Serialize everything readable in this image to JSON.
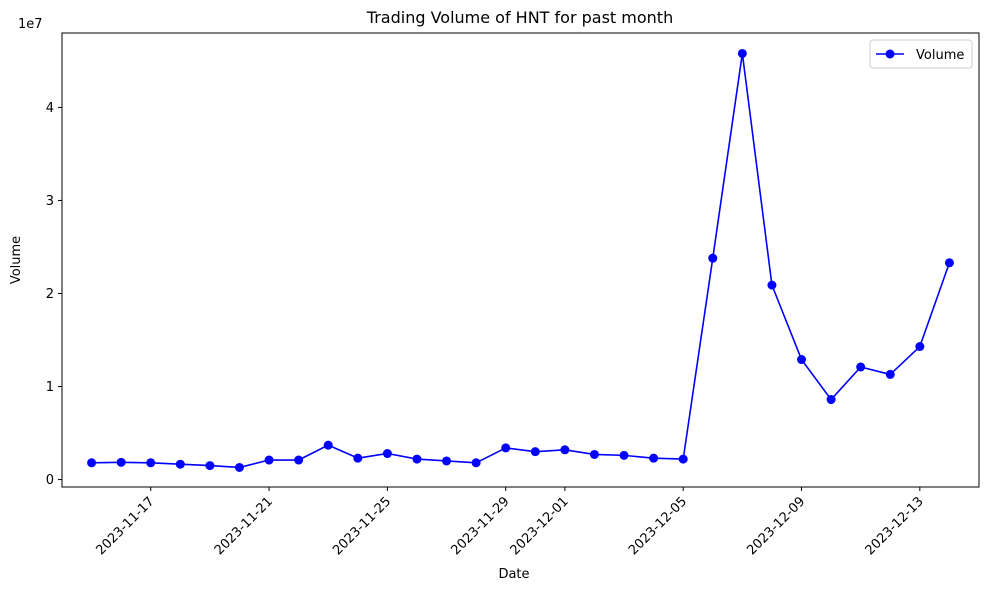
{
  "chart_data": {
    "type": "line",
    "title": "Trading Volume of HNT for past month",
    "xlabel": "Date",
    "ylabel": "Volume",
    "y_offset_label": "1e7",
    "y_scale": 10000000,
    "ylim": [
      -800000,
      48000000
    ],
    "y_ticks": [
      0,
      10000000,
      20000000,
      30000000,
      40000000
    ],
    "y_tick_labels": [
      "0",
      "1",
      "2",
      "3",
      "4"
    ],
    "xlim": [
      "2023-11-14",
      "2023-12-15"
    ],
    "x_ticks": [
      "2023-11-17",
      "2023-11-21",
      "2023-11-25",
      "2023-11-29",
      "2023-12-01",
      "2023-12-05",
      "2023-12-09",
      "2023-12-13"
    ],
    "x_tick_labels": [
      "2023-11-17",
      "2023-11-21",
      "2023-11-25",
      "2023-11-29",
      "2023-12-01",
      "2023-12-05",
      "2023-12-09",
      "2023-12-13"
    ],
    "grid": false,
    "legend_position": "top-right",
    "series": [
      {
        "name": "Volume",
        "color": "#0000ff",
        "marker": "circle",
        "x": [
          "2023-11-15",
          "2023-11-16",
          "2023-11-17",
          "2023-11-18",
          "2023-11-19",
          "2023-11-20",
          "2023-11-21",
          "2023-11-22",
          "2023-11-23",
          "2023-11-24",
          "2023-11-25",
          "2023-11-26",
          "2023-11-27",
          "2023-11-28",
          "2023-11-29",
          "2023-11-30",
          "2023-12-01",
          "2023-12-02",
          "2023-12-03",
          "2023-12-04",
          "2023-12-05",
          "2023-12-06",
          "2023-12-07",
          "2023-12-08",
          "2023-12-09",
          "2023-12-10",
          "2023-12-11",
          "2023-12-12",
          "2023-12-13",
          "2023-12-14"
        ],
        "values": [
          1800000,
          1850000,
          1800000,
          1650000,
          1500000,
          1300000,
          2100000,
          2100000,
          3700000,
          2300000,
          2800000,
          2200000,
          2000000,
          1800000,
          3400000,
          3000000,
          3200000,
          2700000,
          2600000,
          2300000,
          2200000,
          23800000,
          45800000,
          20900000,
          12900000,
          8600000,
          12100000,
          11300000,
          14300000,
          23300000
        ]
      }
    ]
  }
}
